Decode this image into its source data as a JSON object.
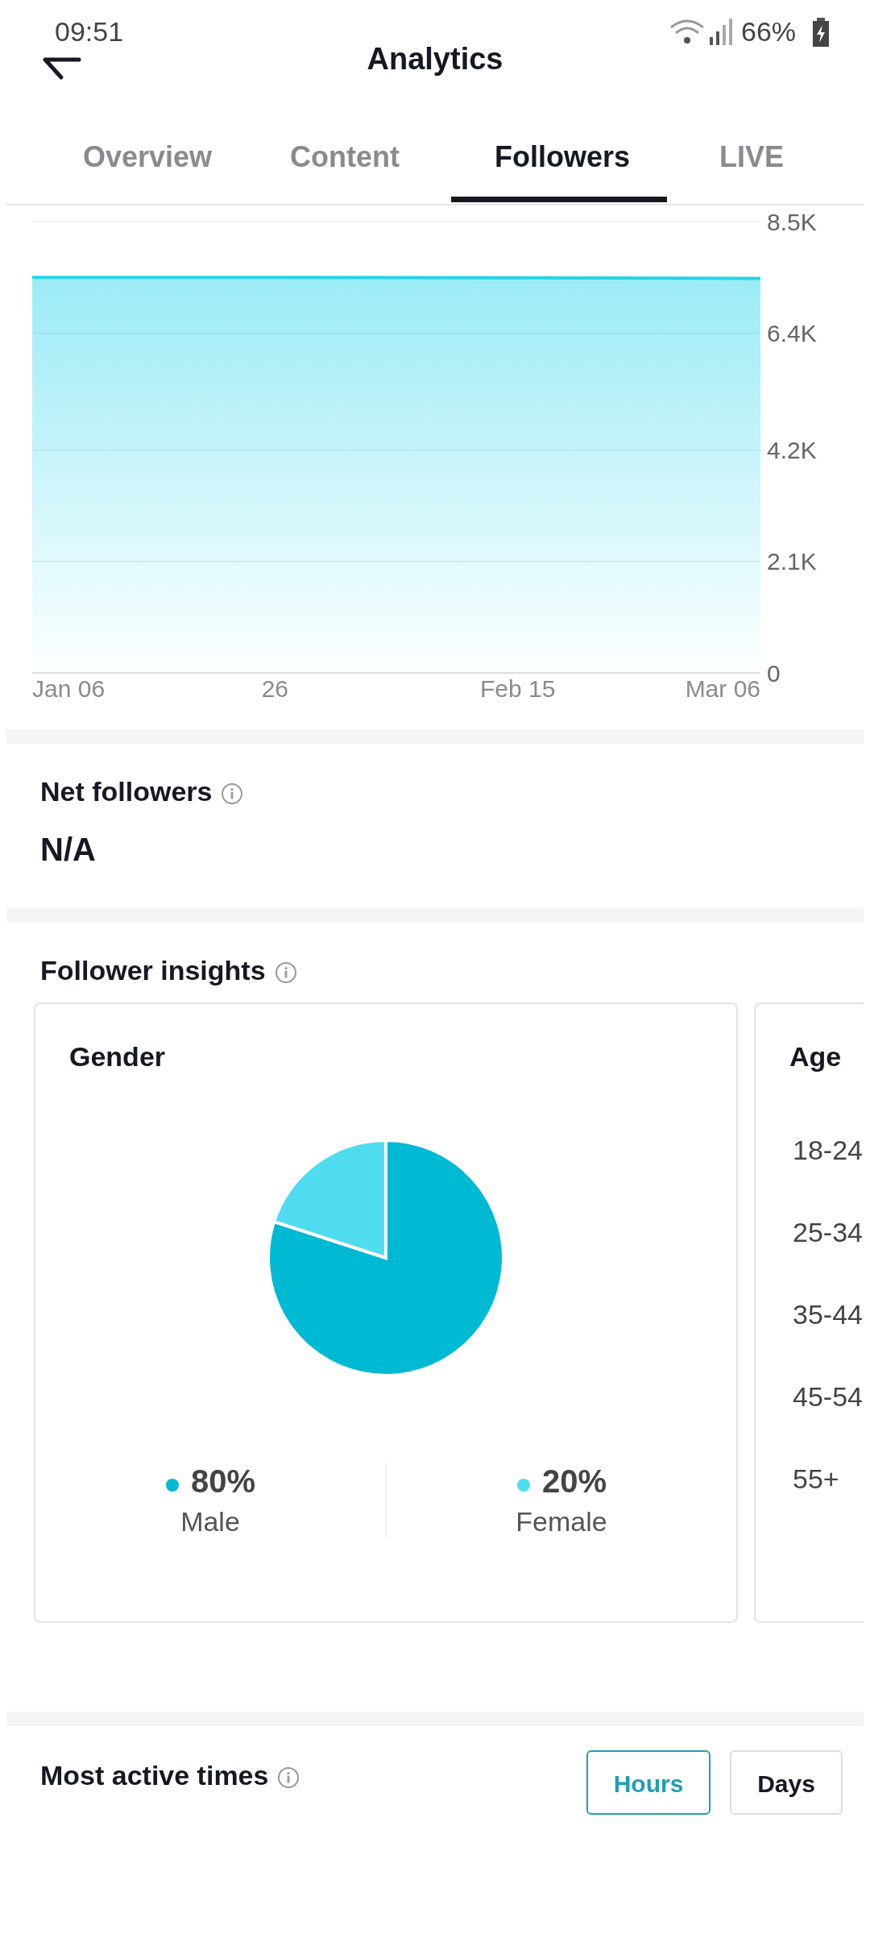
{
  "chart_data": [
    {
      "type": "other",
      "title": "Analytics",
      "annotations": [
        "09:51",
        "66%",
        "Overview",
        "Content",
        "Followers",
        "LIVE"
      ]
    },
    {
      "type": "area",
      "x": [
        "--01-06",
        "--01-26",
        "--02-15",
        "--03-06"
      ],
      "values": [
        7450,
        7450,
        7440,
        7430
      ],
      "color": "#4fdcef",
      "xlim": [
        "--01-06",
        "--03-06"
      ],
      "xticks": [
        {
          "value": "--01-06",
          "label": "Jan 06"
        },
        {
          "value": "--01-26",
          "label": "26"
        },
        {
          "value": "--02-15",
          "label": "Feb 15"
        },
        {
          "value": "--03-06",
          "label": "Mar 06"
        }
      ],
      "ylim": [
        0,
        8500
      ],
      "yticks": [
        {
          "value": 0,
          "label": "0"
        },
        {
          "value": 2100,
          "label": "2.1K"
        },
        {
          "value": 4200,
          "label": "4.2K"
        },
        {
          "value": 6400,
          "label": "6.4K"
        },
        {
          "value": 8500,
          "label": "8.5K"
        }
      ],
      "grid": "y"
    },
    {
      "type": "other",
      "title": "Net followers",
      "annotations": [
        "N/A"
      ]
    },
    {
      "type": "other",
      "title": "Follower insights"
    },
    {
      "type": "pie",
      "title": "Gender",
      "categories": [
        "Male",
        "Female"
      ],
      "values": [
        80,
        20
      ],
      "colors": [
        "#00b9d3",
        "#4fdcef"
      ],
      "value_labels": [
        "80%",
        "20%"
      ],
      "legend": "bottom"
    },
    {
      "type": "other",
      "title": "Age",
      "annotations": [
        "18-24",
        "25-34",
        "35-44",
        "45-54",
        "55+"
      ]
    },
    {
      "type": "other",
      "title": "Most active times",
      "annotations": [
        "Hours",
        "Days"
      ]
    }
  ]
}
